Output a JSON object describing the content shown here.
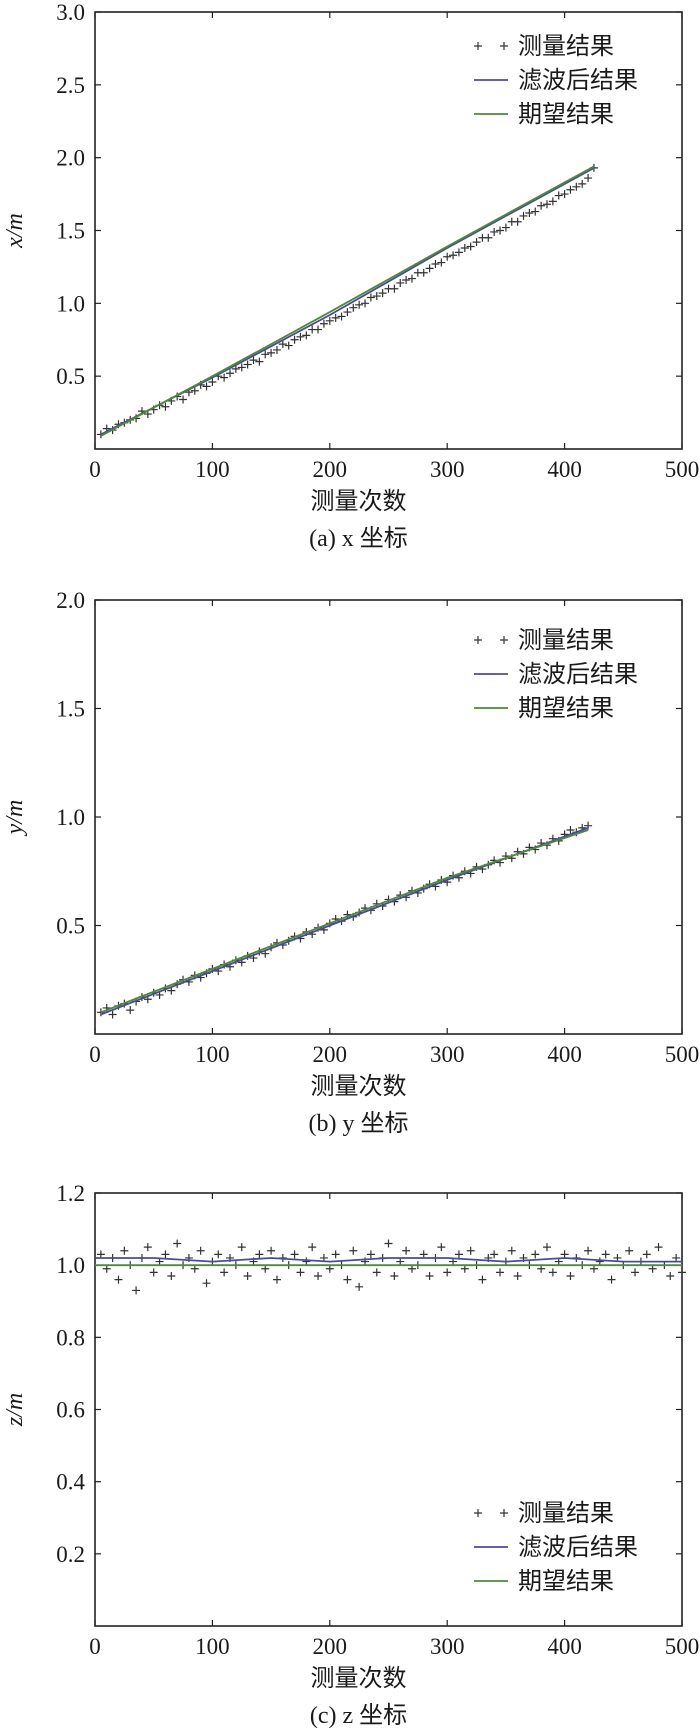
{
  "chart_data": [
    {
      "type": "line",
      "caption": "(a) x 坐标",
      "xlabel": "测量次数",
      "ylabel": "x/m",
      "xlim": [
        0,
        500
      ],
      "ylim": [
        0,
        3.0
      ],
      "xticks": [
        0,
        100,
        200,
        300,
        400,
        500
      ],
      "xtick_labels": [
        "0",
        "100",
        "200",
        "300",
        "400",
        "500"
      ],
      "yticks": [
        0.5,
        1.0,
        1.5,
        2.0,
        2.5,
        3.0
      ],
      "ytick_labels": [
        "0.5",
        "1.0",
        "1.5",
        "2.0",
        "2.5",
        "3.0"
      ],
      "legend_position": "top-right",
      "series": [
        {
          "name": "测量结果",
          "style": "markers",
          "marker": "+",
          "color": "#333333",
          "x": [
            5,
            10,
            15,
            20,
            25,
            30,
            35,
            40,
            45,
            50,
            55,
            60,
            65,
            70,
            75,
            80,
            85,
            90,
            95,
            100,
            105,
            110,
            115,
            120,
            125,
            130,
            135,
            140,
            145,
            150,
            155,
            160,
            165,
            170,
            175,
            180,
            185,
            190,
            195,
            200,
            205,
            210,
            215,
            220,
            225,
            230,
            235,
            240,
            245,
            250,
            255,
            260,
            265,
            270,
            275,
            280,
            285,
            290,
            295,
            300,
            305,
            310,
            315,
            320,
            325,
            330,
            335,
            340,
            345,
            350,
            355,
            360,
            365,
            370,
            375,
            380,
            385,
            390,
            395,
            400,
            405,
            410,
            415,
            420,
            425
          ],
          "y": [
            0.1,
            0.14,
            0.13,
            0.17,
            0.18,
            0.2,
            0.21,
            0.26,
            0.24,
            0.27,
            0.3,
            0.29,
            0.33,
            0.36,
            0.34,
            0.39,
            0.4,
            0.44,
            0.43,
            0.46,
            0.5,
            0.49,
            0.52,
            0.55,
            0.56,
            0.58,
            0.61,
            0.6,
            0.65,
            0.66,
            0.68,
            0.72,
            0.71,
            0.75,
            0.77,
            0.78,
            0.82,
            0.82,
            0.86,
            0.88,
            0.9,
            0.91,
            0.94,
            0.97,
            0.99,
            1.0,
            1.04,
            1.05,
            1.07,
            1.1,
            1.1,
            1.14,
            1.16,
            1.17,
            1.21,
            1.21,
            1.24,
            1.27,
            1.28,
            1.32,
            1.33,
            1.35,
            1.38,
            1.39,
            1.42,
            1.45,
            1.45,
            1.49,
            1.5,
            1.52,
            1.56,
            1.56,
            1.6,
            1.62,
            1.63,
            1.67,
            1.68,
            1.7,
            1.74,
            1.75,
            1.78,
            1.8,
            1.82,
            1.86,
            1.93
          ]
        },
        {
          "name": "滤波后结果",
          "style": "line",
          "color": "#4b4b9c",
          "x": [
            5,
            100,
            200,
            300,
            400,
            425
          ],
          "y": [
            0.1,
            0.49,
            0.92,
            1.38,
            1.82,
            1.93
          ]
        },
        {
          "name": "期望结果",
          "style": "line",
          "color": "#4e8a3a",
          "x": [
            5,
            100,
            200,
            300,
            400,
            425
          ],
          "y": [
            0.09,
            0.5,
            0.94,
            1.39,
            1.83,
            1.94
          ]
        }
      ]
    },
    {
      "type": "line",
      "caption": "(b) y 坐标",
      "xlabel": "测量次数",
      "ylabel": "y/m",
      "xlim": [
        0,
        500
      ],
      "ylim": [
        0,
        2.0
      ],
      "xticks": [
        0,
        100,
        200,
        300,
        400,
        500
      ],
      "xtick_labels": [
        "0",
        "100",
        "200",
        "300",
        "400",
        "500"
      ],
      "yticks": [
        0.5,
        1.0,
        1.5,
        2.0
      ],
      "ytick_labels": [
        "0.5",
        "1.0",
        "1.5",
        "2.0"
      ],
      "legend_position": "top-right",
      "series": [
        {
          "name": "测量结果",
          "style": "markers",
          "marker": "+",
          "color": "#333333",
          "x": [
            5,
            10,
            15,
            20,
            25,
            30,
            35,
            40,
            45,
            50,
            55,
            60,
            65,
            70,
            75,
            80,
            85,
            90,
            95,
            100,
            105,
            110,
            115,
            120,
            125,
            130,
            135,
            140,
            145,
            150,
            155,
            160,
            165,
            170,
            175,
            180,
            185,
            190,
            195,
            200,
            205,
            210,
            215,
            220,
            225,
            230,
            235,
            240,
            245,
            250,
            255,
            260,
            265,
            270,
            275,
            280,
            285,
            290,
            295,
            300,
            305,
            310,
            315,
            320,
            325,
            330,
            335,
            340,
            345,
            350,
            355,
            360,
            365,
            370,
            375,
            380,
            385,
            390,
            395,
            400,
            405,
            410,
            415,
            420
          ],
          "y": [
            0.1,
            0.12,
            0.09,
            0.13,
            0.14,
            0.11,
            0.15,
            0.17,
            0.16,
            0.19,
            0.18,
            0.21,
            0.2,
            0.23,
            0.25,
            0.24,
            0.27,
            0.26,
            0.28,
            0.3,
            0.29,
            0.32,
            0.31,
            0.34,
            0.33,
            0.36,
            0.35,
            0.38,
            0.37,
            0.4,
            0.42,
            0.41,
            0.43,
            0.45,
            0.44,
            0.47,
            0.46,
            0.49,
            0.48,
            0.51,
            0.53,
            0.52,
            0.55,
            0.54,
            0.56,
            0.58,
            0.57,
            0.6,
            0.59,
            0.62,
            0.61,
            0.64,
            0.63,
            0.66,
            0.65,
            0.67,
            0.69,
            0.68,
            0.71,
            0.7,
            0.73,
            0.72,
            0.75,
            0.74,
            0.77,
            0.76,
            0.78,
            0.8,
            0.79,
            0.82,
            0.81,
            0.84,
            0.83,
            0.86,
            0.85,
            0.88,
            0.87,
            0.9,
            0.89,
            0.92,
            0.94,
            0.93,
            0.95,
            0.96
          ]
        },
        {
          "name": "滤波后结果",
          "style": "line",
          "color": "#4b4b9c",
          "x": [
            5,
            100,
            200,
            300,
            420
          ],
          "y": [
            0.09,
            0.29,
            0.5,
            0.71,
            0.95
          ]
        },
        {
          "name": "期望结果",
          "style": "line",
          "color": "#4e8a3a",
          "x": [
            5,
            100,
            200,
            300,
            420
          ],
          "y": [
            0.1,
            0.3,
            0.51,
            0.72,
            0.94
          ]
        }
      ]
    },
    {
      "type": "line",
      "caption": "(c) z 坐标",
      "xlabel": "测量次数",
      "ylabel": "z/m",
      "xlim": [
        0,
        500
      ],
      "ylim": [
        0,
        1.2
      ],
      "xticks": [
        0,
        100,
        200,
        300,
        400,
        500
      ],
      "xtick_labels": [
        "0",
        "100",
        "200",
        "300",
        "400",
        "500"
      ],
      "yticks": [
        0.2,
        0.4,
        0.6,
        0.8,
        1.0,
        1.2
      ],
      "ytick_labels": [
        "0.2",
        "0.4",
        "0.6",
        "0.8",
        "1.0",
        "1.2"
      ],
      "legend_position": "bottom-right",
      "series": [
        {
          "name": "测量结果",
          "style": "markers",
          "marker": "+",
          "color": "#333333",
          "x": [
            5,
            10,
            15,
            20,
            25,
            30,
            35,
            40,
            45,
            50,
            55,
            60,
            65,
            70,
            75,
            80,
            85,
            90,
            95,
            100,
            105,
            110,
            115,
            120,
            125,
            130,
            135,
            140,
            145,
            150,
            155,
            160,
            165,
            170,
            175,
            180,
            185,
            190,
            195,
            200,
            205,
            210,
            215,
            220,
            225,
            230,
            235,
            240,
            245,
            250,
            255,
            260,
            265,
            270,
            275,
            280,
            285,
            290,
            295,
            300,
            305,
            310,
            315,
            320,
            325,
            330,
            335,
            340,
            345,
            350,
            355,
            360,
            365,
            370,
            375,
            380,
            385,
            390,
            395,
            400,
            405,
            410,
            415,
            420,
            425,
            430,
            435,
            440,
            445,
            450,
            455,
            460,
            465,
            470,
            475,
            480,
            485,
            490,
            495,
            500
          ],
          "y": [
            1.03,
            0.99,
            1.02,
            0.96,
            1.04,
            1.0,
            0.93,
            1.02,
            1.05,
            0.98,
            1.01,
            1.03,
            0.97,
            1.06,
            1.0,
            1.02,
            0.99,
            1.04,
            0.95,
            1.01,
            1.03,
            0.98,
            1.02,
            1.0,
            1.05,
            0.97,
            1.01,
            1.03,
            0.99,
            1.04,
            0.96,
            1.02,
            1.0,
            1.03,
            0.98,
            1.01,
            1.05,
            0.97,
            1.02,
            0.99,
            1.03,
            1.0,
            0.96,
            1.04,
            0.94,
            1.01,
            1.03,
            0.98,
            1.02,
            1.06,
            0.97,
            1.01,
            1.04,
            0.99,
            1.0,
            1.03,
            0.97,
            1.02,
            1.05,
            0.98,
            1.01,
            1.03,
            0.99,
            1.04,
            1.0,
            0.96,
            1.02,
            1.03,
            0.98,
            1.01,
            1.04,
            0.97,
            1.02,
            1.0,
            1.03,
            0.99,
            1.05,
            0.98,
            1.01,
            1.03,
            0.97,
            1.02,
            1.0,
            1.04,
            0.99,
            1.01,
            1.03,
            0.96,
            1.02,
            1.0,
            1.04,
            0.98,
            1.01,
            1.03,
            0.99,
            1.05,
            1.0,
            0.97,
            1.02,
            0.98
          ]
        },
        {
          "name": "滤波后结果",
          "style": "line",
          "color": "#4b4b9c",
          "x": [
            0,
            50,
            100,
            150,
            200,
            250,
            300,
            350,
            400,
            450,
            500
          ],
          "y": [
            1.02,
            1.02,
            1.01,
            1.02,
            1.01,
            1.02,
            1.02,
            1.01,
            1.02,
            1.01,
            1.01
          ]
        },
        {
          "name": "期望结果",
          "style": "line",
          "color": "#4e8a3a",
          "x": [
            0,
            500
          ],
          "y": [
            1.0,
            1.0
          ]
        }
      ]
    }
  ]
}
